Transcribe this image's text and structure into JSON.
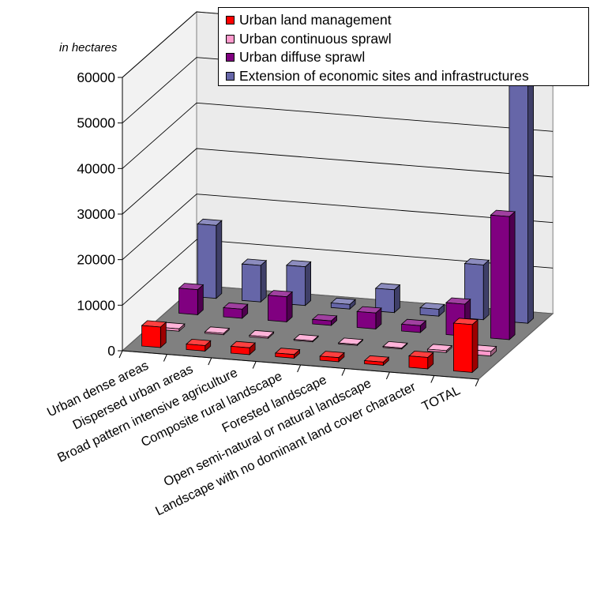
{
  "chart_data": {
    "type": "bar",
    "subtype": "3d-grouped-bar",
    "unit_label": "in hectares",
    "categories": [
      "Urban dense areas",
      "Dispersed urban areas",
      "Broad pattern intensive agriculture",
      "Composite rural landscape",
      "Forested landscape",
      "Open semi-natural or natural landscape",
      "Landscape with no dominant land cover character",
      "TOTAL"
    ],
    "series": [
      {
        "name": "Urban land management",
        "color": "#ff0000",
        "values": [
          4500,
          1200,
          1500,
          800,
          900,
          700,
          2500,
          10500
        ]
      },
      {
        "name": "Urban continuous sprawl",
        "color": "#ff99cc",
        "values": [
          500,
          300,
          300,
          200,
          200,
          200,
          400,
          1000
        ]
      },
      {
        "name": "Urban diffuse sprawl",
        "color": "#800080",
        "values": [
          5500,
          2000,
          5500,
          1000,
          3500,
          1500,
          7000,
          27000
        ]
      },
      {
        "name": "Extension of economic sites and infrastructures",
        "color": "#6666a8",
        "values": [
          16000,
          8000,
          8500,
          1000,
          5000,
          1500,
          12000,
          53500
        ]
      }
    ],
    "yaxis": {
      "min": 0,
      "max": 60000,
      "ticks": [
        0,
        10000,
        20000,
        30000,
        40000,
        50000,
        60000
      ]
    },
    "grid": true,
    "legend_position": "top-right"
  }
}
